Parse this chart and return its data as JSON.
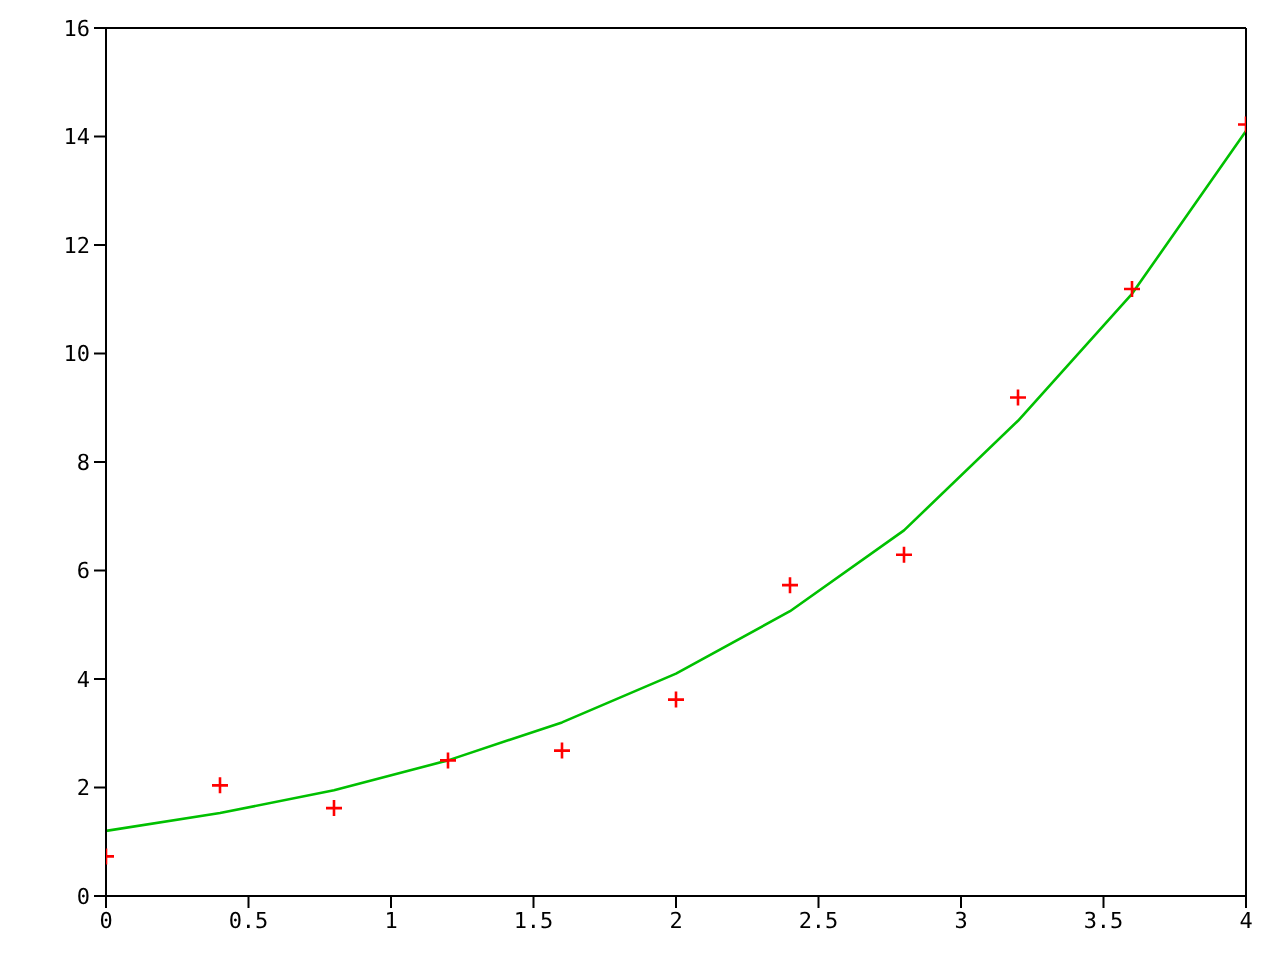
{
  "chart_data": {
    "type": "scatter",
    "x": [
      0,
      0.4,
      0.8,
      1.2,
      1.6,
      2.0,
      2.4,
      2.8,
      3.2,
      3.6,
      4.0
    ],
    "marker": "cross",
    "legend": false,
    "series": [
      {
        "color": "#ff0000",
        "values": [
          0.73,
          2.04,
          1.62,
          2.5,
          2.68,
          3.62,
          5.73,
          6.29,
          9.19,
          11.19,
          14.22
        ]
      },
      {
        "type": "line",
        "color": "#00c000",
        "values": [
          1.2,
          1.53,
          1.95,
          2.5,
          3.2,
          4.1,
          5.25,
          6.74,
          8.76,
          11.1,
          14.1
        ],
        "marker": "none",
        "line_style": "solid"
      }
    ],
    "xlim": [
      0,
      4
    ],
    "xticks": [
      0,
      0.5,
      1,
      1.5,
      2,
      2.5,
      3,
      3.5,
      4
    ],
    "ylim": [
      0,
      16
    ],
    "yticks": [
      0,
      2,
      4,
      6,
      8,
      10,
      12,
      14,
      16
    ]
  }
}
